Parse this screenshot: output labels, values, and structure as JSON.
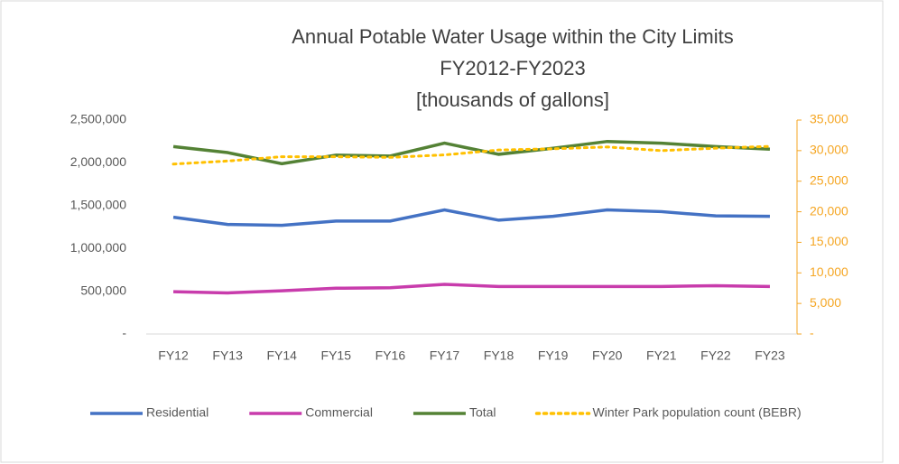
{
  "chart_data": {
    "type": "line",
    "title": [
      "Annual Potable Water Usage within the City Limits",
      "FY2012-FY2023",
      "[thousands of gallons]"
    ],
    "categories": [
      "FY12",
      "FY13",
      "FY14",
      "FY15",
      "FY16",
      "FY17",
      "FY18",
      "FY19",
      "FY20",
      "FY21",
      "FY22",
      "FY23"
    ],
    "series": [
      {
        "name": "Residential",
        "color": "#4472c4",
        "values": [
          1365000,
          1280000,
          1270000,
          1320000,
          1320000,
          1450000,
          1330000,
          1375000,
          1450000,
          1430000,
          1380000,
          1375000
        ]
      },
      {
        "name": "Commercial",
        "color": "#c83cac",
        "values": [
          495000,
          480000,
          505000,
          535000,
          540000,
          580000,
          555000,
          555000,
          555000,
          555000,
          565000,
          555000
        ]
      },
      {
        "name": "Total",
        "color": "#548235",
        "values": [
          2190000,
          2120000,
          1990000,
          2090000,
          2080000,
          2230000,
          2100000,
          2170000,
          2250000,
          2230000,
          2190000,
          2160000
        ]
      },
      {
        "name": "Winter Park population count (BEBR)",
        "color": "#ffc000",
        "dashed": true,
        "axis": "y2",
        "values": [
          27800,
          28300,
          29000,
          29000,
          28900,
          29300,
          30100,
          30300,
          30600,
          30000,
          30400,
          30700
        ]
      }
    ],
    "ylim": [
      0,
      2500000
    ],
    "yticks": [
      {
        "value": 0,
        "label": "-"
      },
      {
        "value": 500000,
        "label": "500,000"
      },
      {
        "value": 1000000,
        "label": "1,000,000"
      },
      {
        "value": 1500000,
        "label": "1,500,000"
      },
      {
        "value": 2000000,
        "label": "2,000,000"
      },
      {
        "value": 2500000,
        "label": "2,500,000"
      }
    ],
    "y2lim": [
      0,
      35000
    ],
    "y2ticks": [
      {
        "value": 0,
        "label": "-"
      },
      {
        "value": 5000,
        "label": "5,000"
      },
      {
        "value": 10000,
        "label": "10,000"
      },
      {
        "value": 15000,
        "label": "15,000"
      },
      {
        "value": 20000,
        "label": "20,000"
      },
      {
        "value": 25000,
        "label": "25,000"
      },
      {
        "value": 30000,
        "label": "30,000"
      },
      {
        "value": 35000,
        "label": "35,000"
      }
    ],
    "y2color": "#f5a623",
    "legend": "bottom"
  }
}
